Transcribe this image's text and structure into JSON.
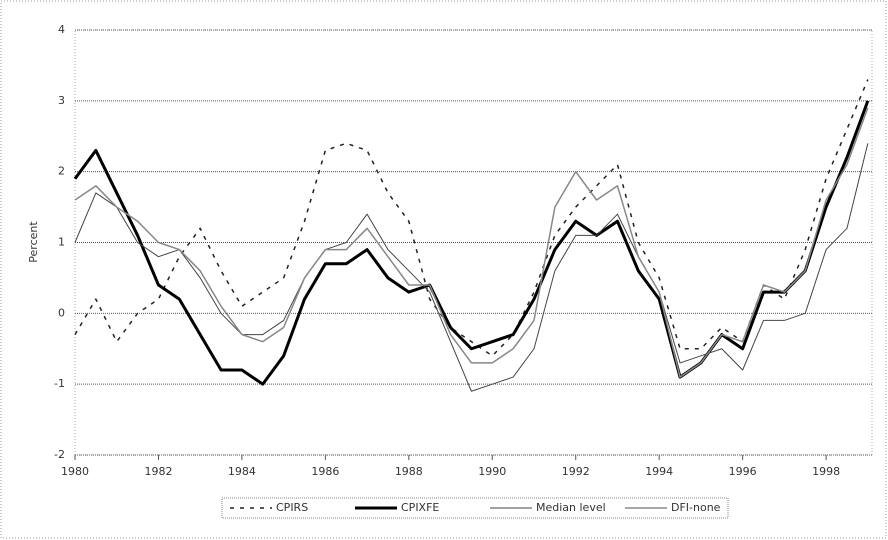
{
  "chart_data": {
    "type": "line",
    "y_label": "Percent",
    "x": [
      1980,
      1980.5,
      1981,
      1981.5,
      1982,
      1982.5,
      1983,
      1983.5,
      1984,
      1984.5,
      1985,
      1985.5,
      1986,
      1986.5,
      1987,
      1987.5,
      1988,
      1988.5,
      1989,
      1989.5,
      1990,
      1990.5,
      1991,
      1991.5,
      1992,
      1992.5,
      1993,
      1993.5,
      1994,
      1994.5,
      1995,
      1995.5,
      1996,
      1996.5,
      1997,
      1997.5,
      1998,
      1998.5,
      1999
    ],
    "series": [
      {
        "name": "CPIRS",
        "color": "#222222",
        "width": 1.5,
        "dash": "4,6",
        "values": [
          -0.3,
          0.2,
          -0.4,
          0.0,
          0.2,
          0.8,
          1.2,
          0.6,
          0.1,
          0.3,
          0.5,
          1.3,
          2.3,
          2.4,
          2.3,
          1.7,
          1.3,
          0.2,
          -0.2,
          -0.4,
          -0.6,
          -0.3,
          0.3,
          1.1,
          1.5,
          1.8,
          2.1,
          1.0,
          0.5,
          -0.5,
          -0.5,
          -0.2,
          -0.4,
          0.4,
          0.2,
          0.9,
          1.9,
          2.6,
          3.3
        ]
      },
      {
        "name": "CPIXFE",
        "color": "#000000",
        "width": 3,
        "values": [
          1.9,
          2.3,
          1.7,
          1.1,
          0.4,
          0.2,
          -0.3,
          -0.8,
          -0.8,
          -1.0,
          -0.6,
          0.2,
          0.7,
          0.7,
          0.9,
          0.5,
          0.3,
          0.4,
          -0.2,
          -0.5,
          -0.4,
          -0.3,
          0.2,
          0.9,
          1.3,
          1.1,
          1.3,
          0.6,
          0.2,
          -0.9,
          -0.7,
          -0.3,
          -0.5,
          0.3,
          0.3,
          0.6,
          1.5,
          2.2,
          3.0
        ]
      },
      {
        "name": "Median level",
        "color": "#444444",
        "width": 1,
        "values": [
          1.0,
          1.7,
          1.5,
          1.0,
          0.8,
          0.9,
          0.5,
          0.0,
          -0.3,
          -0.3,
          -0.1,
          0.5,
          0.9,
          1.0,
          1.4,
          0.9,
          0.6,
          0.3,
          -0.4,
          -1.1,
          -1.0,
          -0.9,
          -0.5,
          0.6,
          1.1,
          1.1,
          1.4,
          0.8,
          0.3,
          -0.7,
          -0.6,
          -0.5,
          -0.8,
          -0.1,
          -0.1,
          0.0,
          0.9,
          1.2,
          2.4
        ]
      },
      {
        "name": "DFI-none",
        "color": "#888888",
        "width": 1.5,
        "values": [
          1.6,
          1.8,
          1.5,
          1.3,
          1.0,
          0.9,
          0.6,
          0.1,
          -0.3,
          -0.4,
          -0.2,
          0.5,
          0.9,
          0.9,
          1.2,
          0.8,
          0.4,
          0.4,
          -0.3,
          -0.7,
          -0.7,
          -0.5,
          -0.1,
          1.5,
          2.0,
          1.6,
          1.8,
          0.8,
          0.3,
          -0.9,
          -0.7,
          -0.3,
          -0.4,
          0.4,
          0.3,
          0.6,
          1.6,
          2.1,
          2.9
        ]
      }
    ],
    "xlim": [
      1980,
      1999.1
    ],
    "xticks": [
      1980,
      1982,
      1984,
      1986,
      1988,
      1990,
      1992,
      1994,
      1996,
      1998
    ],
    "ylim": [
      -2,
      4
    ],
    "yticks": [
      -2,
      -1,
      0,
      1,
      2,
      3,
      4
    ],
    "grid": true
  }
}
